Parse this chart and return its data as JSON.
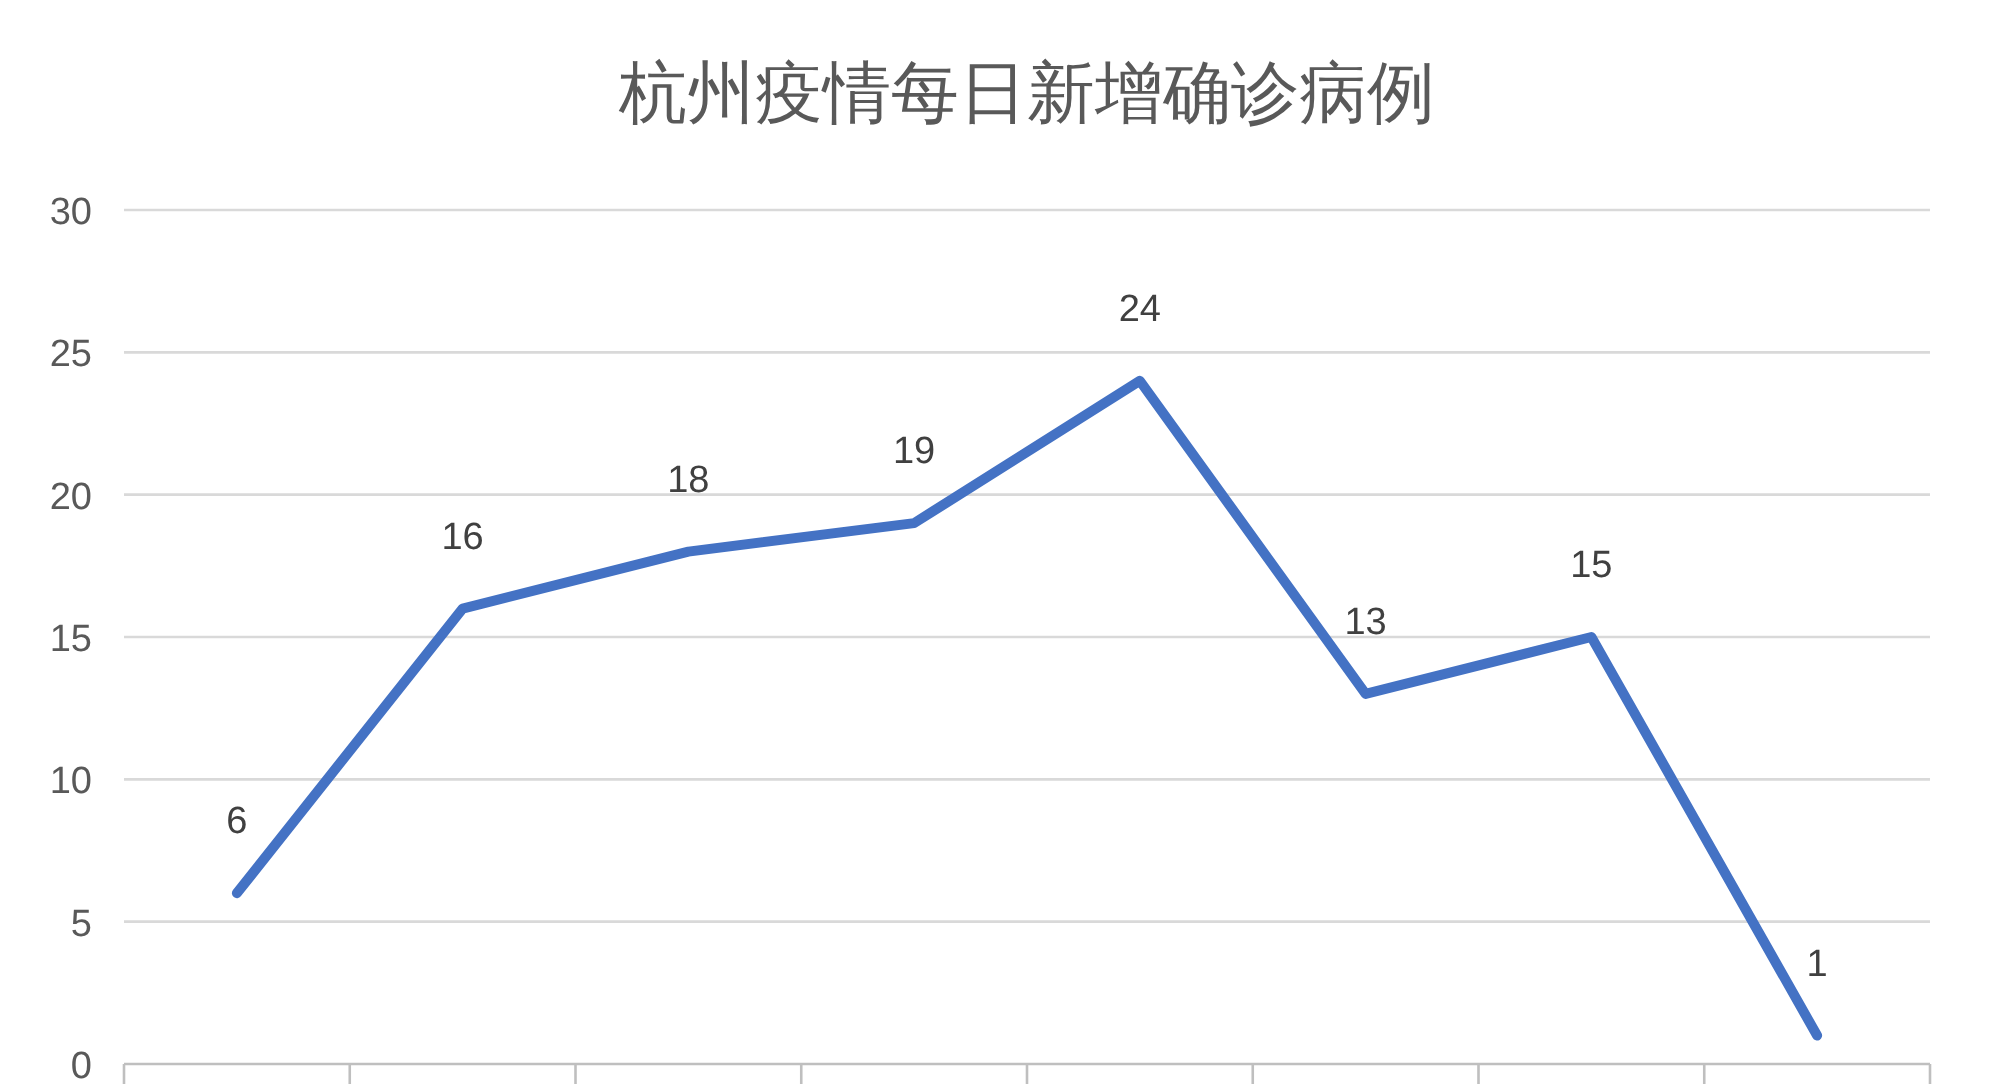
{
  "chart_data": {
    "type": "line",
    "title": "杭州疫情每日新增确诊病例",
    "categories": [
      null,
      null,
      null,
      null,
      null,
      null,
      null,
      null
    ],
    "values": [
      6,
      16,
      18,
      19,
      24,
      13,
      15,
      1
    ],
    "color": "#4472c4",
    "ylim": [
      0,
      30
    ],
    "yticks": [
      0,
      5,
      10,
      15,
      20,
      25,
      30
    ],
    "grid": "y",
    "data_labels": true
  }
}
